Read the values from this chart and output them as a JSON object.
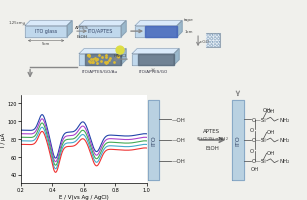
{
  "bg_color": "#f0f0ec",
  "electrochemistry": {
    "xlabel": "E / V(vs Ag / AgCl)",
    "ylabel": "I / μA",
    "xlim": [
      0.2,
      1.0
    ],
    "ylim": [
      30,
      130
    ],
    "xticks": [
      0.2,
      0.4,
      0.6,
      0.8,
      1.0
    ],
    "yticks": [
      40,
      60,
      80,
      100,
      120
    ],
    "curves": [
      {
        "color": "#2244aa",
        "lw": 0.8
      },
      {
        "color": "#aa44cc",
        "lw": 0.8
      },
      {
        "color": "#44aa55",
        "lw": 0.8
      },
      {
        "color": "#44aacc",
        "lw": 0.8
      },
      {
        "color": "#ee3333",
        "lw": 0.8
      }
    ]
  },
  "ito_color": "#b8d4e8",
  "ito_top_color": "#d0e8f8",
  "ito_side_color": "#8ab0cc",
  "ito_edge": "#8899aa",
  "tape_color": "#5577cc",
  "graphene_color": "#607080",
  "au_color": "#d4aa33",
  "arrow_color": "#888888",
  "label_color": "#333333",
  "text_color": "#444444"
}
